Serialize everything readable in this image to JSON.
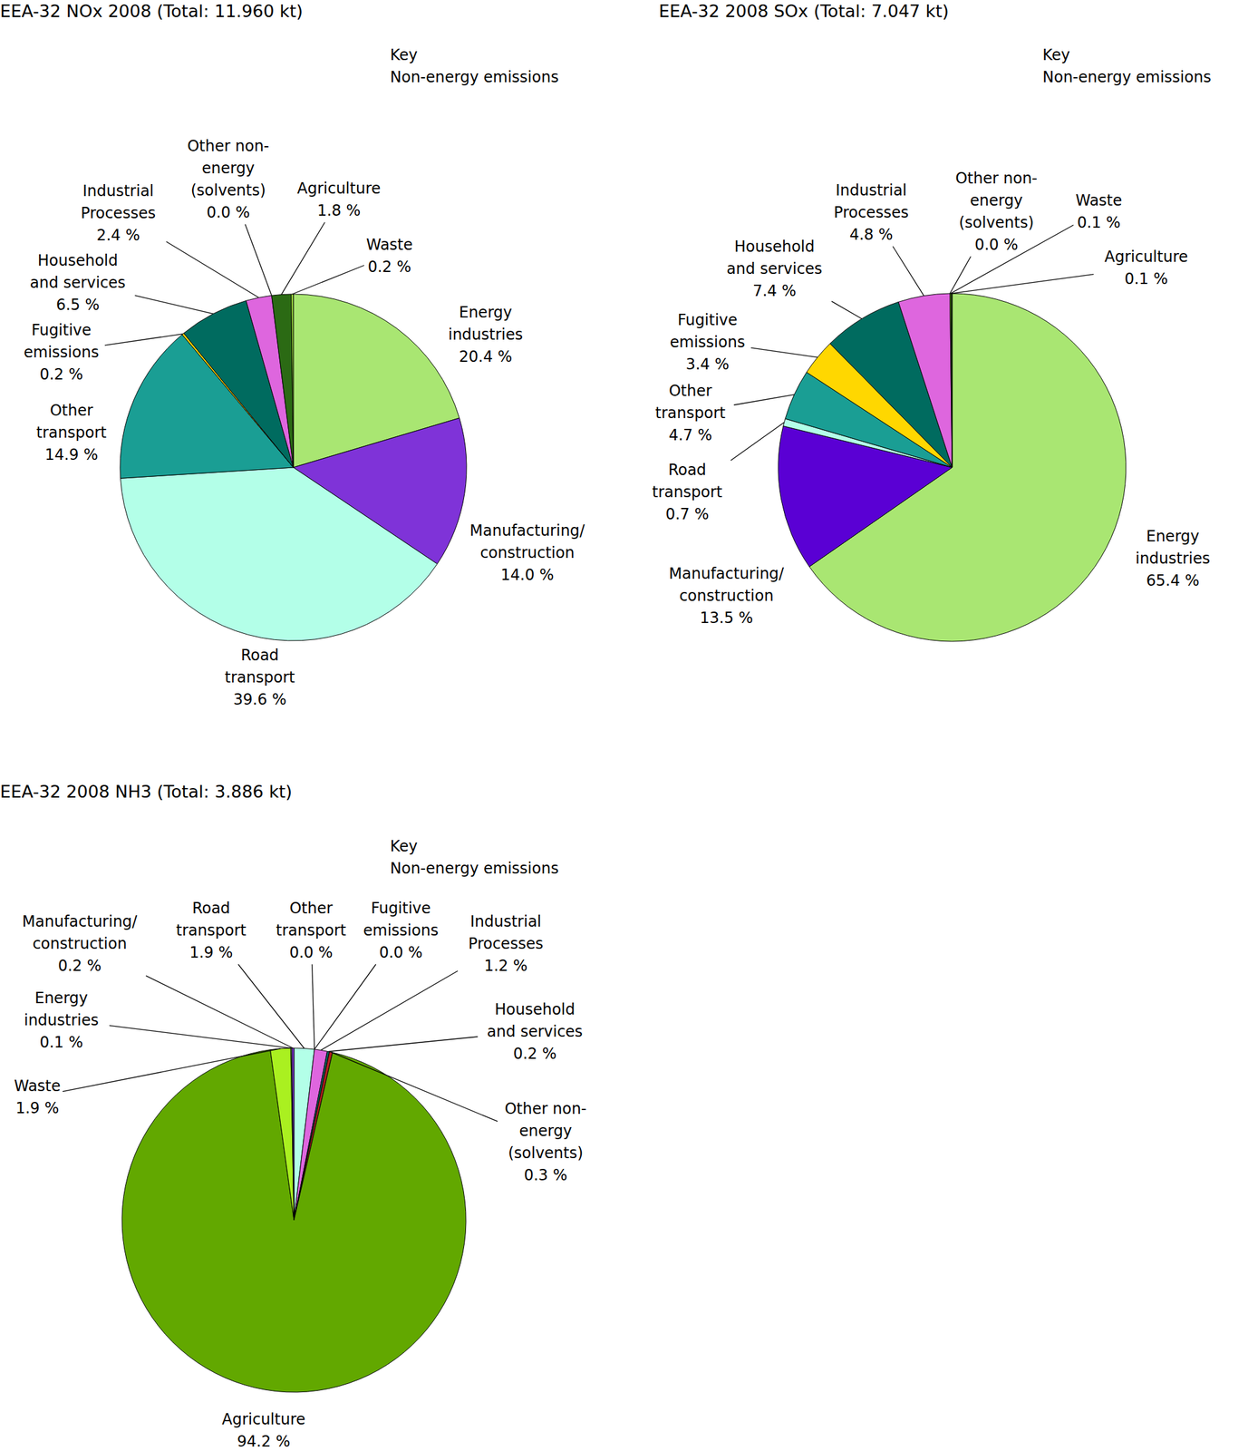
{
  "chart_data": [
    {
      "type": "pie",
      "title": "EEA-32 NOx 2008 (Total: 11.960 kt)",
      "annotations": [
        "Key",
        "Non-energy emissions"
      ],
      "data_labels": true,
      "categories": [
        "Energy industries",
        "Manufacturing/construction",
        "Road transport",
        "Other transport",
        "Fugitive emissions",
        "Household and services",
        "Industrial Processes",
        "Other non-energy (solvents)",
        "Agriculture",
        "Waste"
      ],
      "values": [
        20.4,
        14.0,
        39.6,
        14.9,
        0.2,
        6.5,
        2.4,
        0.0,
        1.8,
        0.2
      ],
      "value_labels": [
        "20.4 %",
        "14.0 %",
        "39.6 %",
        "14.9 %",
        "0.2 %",
        "6.5 %",
        "2.4 %",
        "0.0 %",
        "1.8 %",
        "0.2 %"
      ],
      "colors": [
        "#a9e672",
        "#7f33d8",
        "#b3ffe8",
        "#1a9e94",
        "#ffd400",
        "#006b5f",
        "#de66de",
        "#b02020",
        "#2b6a14",
        "#a0e040"
      ]
    },
    {
      "type": "pie",
      "title": "EEA-32 2008 SOx (Total: 7.047 kt)",
      "annotations": [
        "Key",
        "Non-energy emissions"
      ],
      "data_labels": true,
      "categories": [
        "Energy industries",
        "Manufacturing/construction",
        "Road transport",
        "Other transport",
        "Fugitive emissions",
        "Household and services",
        "Industrial Processes",
        "Other non-energy (solvents)",
        "Waste",
        "Agriculture"
      ],
      "values": [
        65.4,
        13.5,
        0.7,
        4.7,
        3.4,
        7.4,
        4.8,
        0.0,
        0.1,
        0.1
      ],
      "value_labels": [
        "65.4 %",
        "13.5 %",
        "0.7 %",
        "4.7 %",
        "3.4 %",
        "7.4 %",
        "4.8 %",
        "0.0 %",
        "0.1 %",
        "0.1 %"
      ],
      "colors": [
        "#a9e672",
        "#5a00d4",
        "#b3ffe8",
        "#1a9e94",
        "#ffd700",
        "#006b5f",
        "#de66de",
        "#b02020",
        "#a0e040",
        "#2b6a14"
      ]
    },
    {
      "type": "pie",
      "title": "EEA-32 2008 NH3 (Total: 3.886 kt)",
      "annotations": [
        "Key",
        "Non-energy emissions"
      ],
      "data_labels": true,
      "categories": [
        "Road transport",
        "Other transport",
        "Fugitive emissions",
        "Industrial Processes",
        "Household and services",
        "Other non-energy (solvents)",
        "Agriculture",
        "Waste",
        "Energy industries",
        "Manufacturing/construction"
      ],
      "values": [
        1.9,
        0.0,
        0.0,
        1.2,
        0.2,
        0.3,
        94.2,
        1.9,
        0.1,
        0.2
      ],
      "value_labels": [
        "1.9 %",
        "0.0 %",
        "0.0 %",
        "1.2 %",
        "0.2 %",
        "0.3 %",
        "94.2 %",
        "1.9 %",
        "0.1 %",
        "0.2 %"
      ],
      "colors": [
        "#b3ffe8",
        "#1a9e94",
        "#ffd700",
        "#de66de",
        "#006b5f",
        "#b02020",
        "#62a800",
        "#aaf020",
        "#a9e672",
        "#7f33d8"
      ]
    }
  ]
}
